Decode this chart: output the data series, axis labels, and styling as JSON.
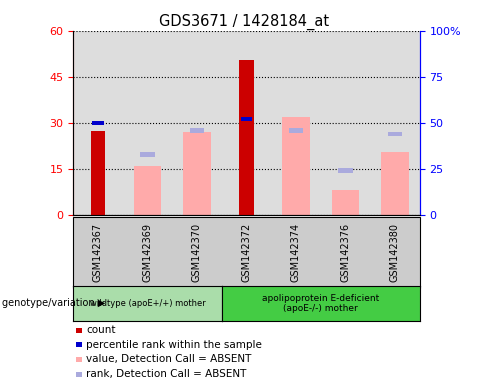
{
  "title": "GDS3671 / 1428184_at",
  "samples": [
    "GSM142367",
    "GSM142369",
    "GSM142370",
    "GSM142372",
    "GSM142374",
    "GSM142376",
    "GSM142380"
  ],
  "count_values": [
    27.5,
    null,
    null,
    50.5,
    null,
    null,
    null
  ],
  "percentile_rank_pct": [
    50.0,
    null,
    null,
    52.0,
    null,
    null,
    null
  ],
  "value_absent": [
    null,
    16.0,
    27.0,
    null,
    32.0,
    8.0,
    20.5
  ],
  "rank_absent_pct": [
    null,
    33.0,
    46.0,
    null,
    46.0,
    24.0,
    44.0
  ],
  "ylim_left": [
    0,
    60
  ],
  "ylim_right": [
    0,
    100
  ],
  "yticks_left": [
    0,
    15,
    30,
    45,
    60
  ],
  "yticks_right": [
    0,
    25,
    50,
    75,
    100
  ],
  "ytick_labels_left": [
    "0",
    "15",
    "30",
    "45",
    "60"
  ],
  "ytick_labels_right": [
    "0",
    "25",
    "50",
    "75",
    "100%"
  ],
  "color_count": "#cc0000",
  "color_rank": "#0000cc",
  "color_value_absent": "#ffaaaa",
  "color_rank_absent": "#aaaadd",
  "group1_label": "wildtype (apoE+/+) mother",
  "group2_label": "apolipoprotein E-deficient\n(apoE-/-) mother",
  "group1_color": "#aaddaa",
  "group2_color": "#44cc44",
  "legend_label_count": "count",
  "legend_label_rank": "percentile rank within the sample",
  "legend_label_value_absent": "value, Detection Call = ABSENT",
  "legend_label_rank_absent": "rank, Detection Call = ABSENT",
  "subplot_bg": "#dddddd",
  "genotype_label": "genotype/variation",
  "fig_width": 4.88,
  "fig_height": 3.84
}
